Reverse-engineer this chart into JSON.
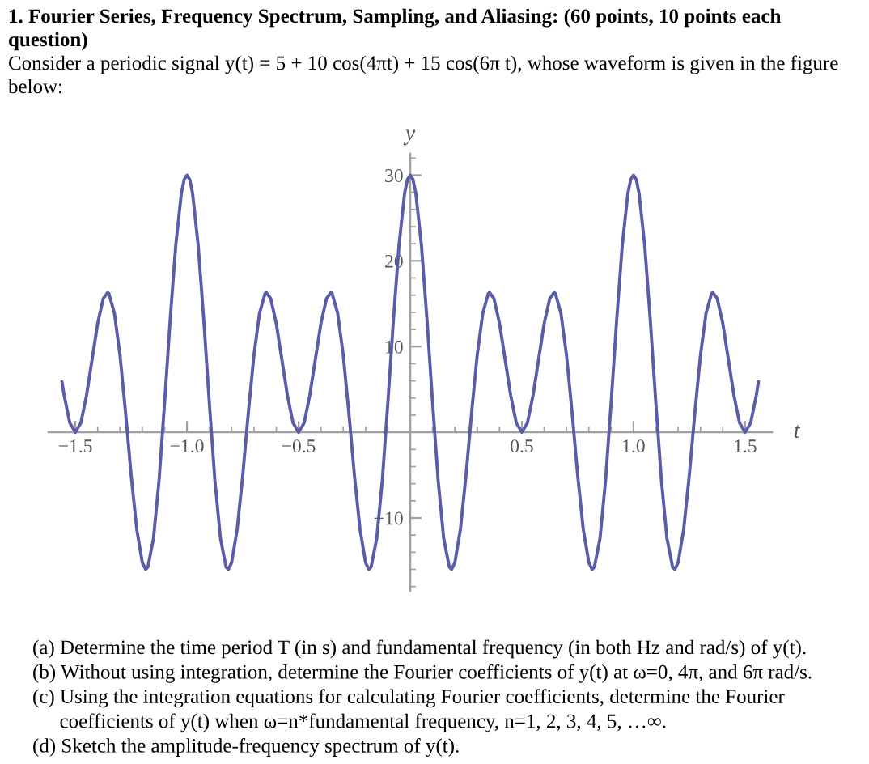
{
  "chart_data": {
    "type": "line",
    "title": "1. Fourier Series, Frequency Spectrum, Sampling, and Aliasing: (60 points, 10 points each question)",
    "subtitle": "Consider a periodic signal y(t) = 5 + 10 cos(4πt) + 15 cos(6π t), whose waveform is given in the figure below:",
    "xlabel": "t",
    "ylabel": "y",
    "annotations": [
      "(a) Determine the time period T (in s) and fundamental frequency (in both Hz and rad/s) of y(t).",
      "(b) Without using integration, determine the Fourier coefficients of y(t) at ω=0, 4π, and 6π rad/s.",
      "(c) Using the integration equations for calculating Fourier coefficients, determine the Fourier coefficients of y(t) when ω=n*fundamental frequency, n=1, 2, 3, 4, 5, …∞.",
      "(d) Sketch the amplitude-frequency spectrum of y(t)."
    ],
    "x": [
      -1.56,
      -1.55,
      -1.525,
      -1.5,
      -1.475,
      -1.45,
      -1.425,
      -1.4,
      -1.375,
      -1.355,
      -1.35,
      -1.325,
      -1.3,
      -1.275,
      -1.25,
      -1.225,
      -1.2,
      -1.185,
      -1.175,
      -1.15,
      -1.125,
      -1.1,
      -1.075,
      -1.05,
      -1.025,
      -1.0125,
      -1,
      -0.9875,
      -0.975,
      -0.95,
      -0.925,
      -0.9,
      -0.875,
      -0.85,
      -0.825,
      -0.815,
      -0.8,
      -0.775,
      -0.75,
      -0.725,
      -0.7,
      -0.675,
      -0.65,
      -0.645,
      -0.625,
      -0.6,
      -0.575,
      -0.55,
      -0.525,
      -0.5,
      -0.475,
      -0.45,
      -0.425,
      -0.4,
      -0.375,
      -0.355,
      -0.35,
      -0.325,
      -0.3,
      -0.275,
      -0.25,
      -0.225,
      -0.2,
      -0.185,
      -0.175,
      -0.15,
      -0.125,
      -0.1,
      -0.075,
      -0.05,
      -0.025,
      -0.0125,
      0,
      0.0125,
      0.025,
      0.05,
      0.075,
      0.1,
      0.125,
      0.15,
      0.175,
      0.185,
      0.2,
      0.225,
      0.25,
      0.275,
      0.3,
      0.325,
      0.35,
      0.355,
      0.375,
      0.4,
      0.425,
      0.45,
      0.475,
      0.5,
      0.525,
      0.55,
      0.575,
      0.6,
      0.625,
      0.645,
      0.65,
      0.675,
      0.7,
      0.725,
      0.75,
      0.775,
      0.8,
      0.815,
      0.825,
      0.85,
      0.875,
      0.9,
      0.925,
      0.95,
      0.975,
      0.9875,
      1,
      1.0125,
      1.025,
      1.05,
      1.075,
      1.1,
      1.125,
      1.15,
      1.175,
      1.185,
      1.2,
      1.225,
      1.25,
      1.275,
      1.3,
      1.325,
      1.35,
      1.355,
      1.375,
      1.4,
      1.425,
      1.45,
      1.475,
      1.5,
      1.525,
      1.55,
      1.56
    ],
    "series": [
      {
        "color": "#5a5ca8",
        "values": [
          5.9,
          4.3,
          1.1,
          0,
          1.1,
          4.3,
          8.5,
          12.7,
          15.6,
          16.3,
          16.2,
          13.9,
          9.0,
          2.3,
          -5,
          -11.3,
          -15.2,
          -16.0,
          -15.7,
          -12.4,
          -5.6,
          3.5,
          13.2,
          21.9,
          27.9,
          29.5,
          30,
          29.5,
          27.9,
          21.9,
          13.2,
          3.5,
          -5.6,
          -12.4,
          -15.7,
          -16.0,
          -15.2,
          -11.3,
          -5,
          2.3,
          9.0,
          13.9,
          16.2,
          16.3,
          15.6,
          12.7,
          8.5,
          4.3,
          1.1,
          0,
          1.1,
          4.3,
          8.5,
          12.7,
          15.6,
          16.3,
          16.2,
          13.9,
          9.0,
          2.3,
          -5,
          -11.3,
          -15.2,
          -16.0,
          -15.7,
          -12.4,
          -5.6,
          3.5,
          13.2,
          21.9,
          27.9,
          29.5,
          30,
          29.5,
          27.9,
          21.9,
          13.2,
          3.5,
          -5.6,
          -12.4,
          -15.7,
          -16.0,
          -15.2,
          -11.3,
          -5,
          2.3,
          9.0,
          13.9,
          16.2,
          16.3,
          15.6,
          12.7,
          8.5,
          4.3,
          1.1,
          0,
          1.1,
          4.3,
          8.5,
          12.7,
          15.6,
          16.3,
          16.2,
          13.9,
          9.0,
          2.3,
          -5,
          -11.3,
          -15.2,
          -16.0,
          -15.7,
          -12.4,
          -5.6,
          3.5,
          13.2,
          21.9,
          27.9,
          29.5,
          30,
          29.5,
          27.9,
          21.9,
          13.2,
          3.5,
          -5.6,
          -12.4,
          -15.7,
          -16.0,
          -15.2,
          -11.3,
          -5,
          2.3,
          9.0,
          13.9,
          16.2,
          16.3,
          15.6,
          12.7,
          8.5,
          4.3,
          1.1,
          0,
          1.1,
          4.3,
          5.9
        ]
      }
    ],
    "xlim": [
      -1.62,
      1.62
    ],
    "ylim": [
      -18.5,
      32.5
    ],
    "xticks": [
      {
        "value": -1.5,
        "label": "−1.5"
      },
      {
        "value": -1,
        "label": "−1.0"
      },
      {
        "value": -0.5,
        "label": "−0.5"
      },
      {
        "value": 0.5,
        "label": "0.5"
      },
      {
        "value": 1,
        "label": "1.0"
      },
      {
        "value": 1.5,
        "label": "1.5"
      },
      {
        "value": -1.4,
        "label": null
      },
      {
        "value": -1.3,
        "label": null
      },
      {
        "value": -1.2,
        "label": null
      },
      {
        "value": -1.1,
        "label": null
      },
      {
        "value": -0.9,
        "label": null
      },
      {
        "value": -0.8,
        "label": null
      },
      {
        "value": -0.7,
        "label": null
      },
      {
        "value": -0.6,
        "label": null
      },
      {
        "value": -0.4,
        "label": null
      },
      {
        "value": -0.3,
        "label": null
      },
      {
        "value": -0.2,
        "label": null
      },
      {
        "value": -0.1,
        "label": null
      },
      {
        "value": 0.1,
        "label": null
      },
      {
        "value": 0.2,
        "label": null
      },
      {
        "value": 0.3,
        "label": null
      },
      {
        "value": 0.4,
        "label": null
      },
      {
        "value": 0.6,
        "label": null
      },
      {
        "value": 0.7,
        "label": null
      },
      {
        "value": 0.8,
        "label": null
      },
      {
        "value": 0.9,
        "label": null
      },
      {
        "value": 1.1,
        "label": null
      },
      {
        "value": 1.2,
        "label": null
      },
      {
        "value": 1.3,
        "label": null
      },
      {
        "value": 1.4,
        "label": null
      }
    ],
    "yticks": [
      {
        "value": -10,
        "label": "−10"
      },
      10,
      20,
      30,
      {
        "value": -18,
        "label": null
      },
      {
        "value": -16,
        "label": null
      },
      {
        "value": -14,
        "label": null
      },
      {
        "value": -12,
        "label": null
      },
      {
        "value": -8,
        "label": null
      },
      {
        "value": -6,
        "label": null
      },
      {
        "value": -4,
        "label": null
      },
      {
        "value": -2,
        "label": null
      },
      {
        "value": 2,
        "label": null
      },
      {
        "value": 4,
        "label": null
      },
      {
        "value": 6,
        "label": null
      },
      {
        "value": 8,
        "label": null
      },
      {
        "value": 12,
        "label": null
      },
      {
        "value": 14,
        "label": null
      },
      {
        "value": 16,
        "label": null
      },
      {
        "value": 18,
        "label": null
      },
      {
        "value": 22,
        "label": null
      },
      {
        "value": 24,
        "label": null
      },
      {
        "value": 26,
        "label": null
      },
      {
        "value": 28,
        "label": null
      },
      {
        "value": 32,
        "label": null
      }
    ]
  }
}
